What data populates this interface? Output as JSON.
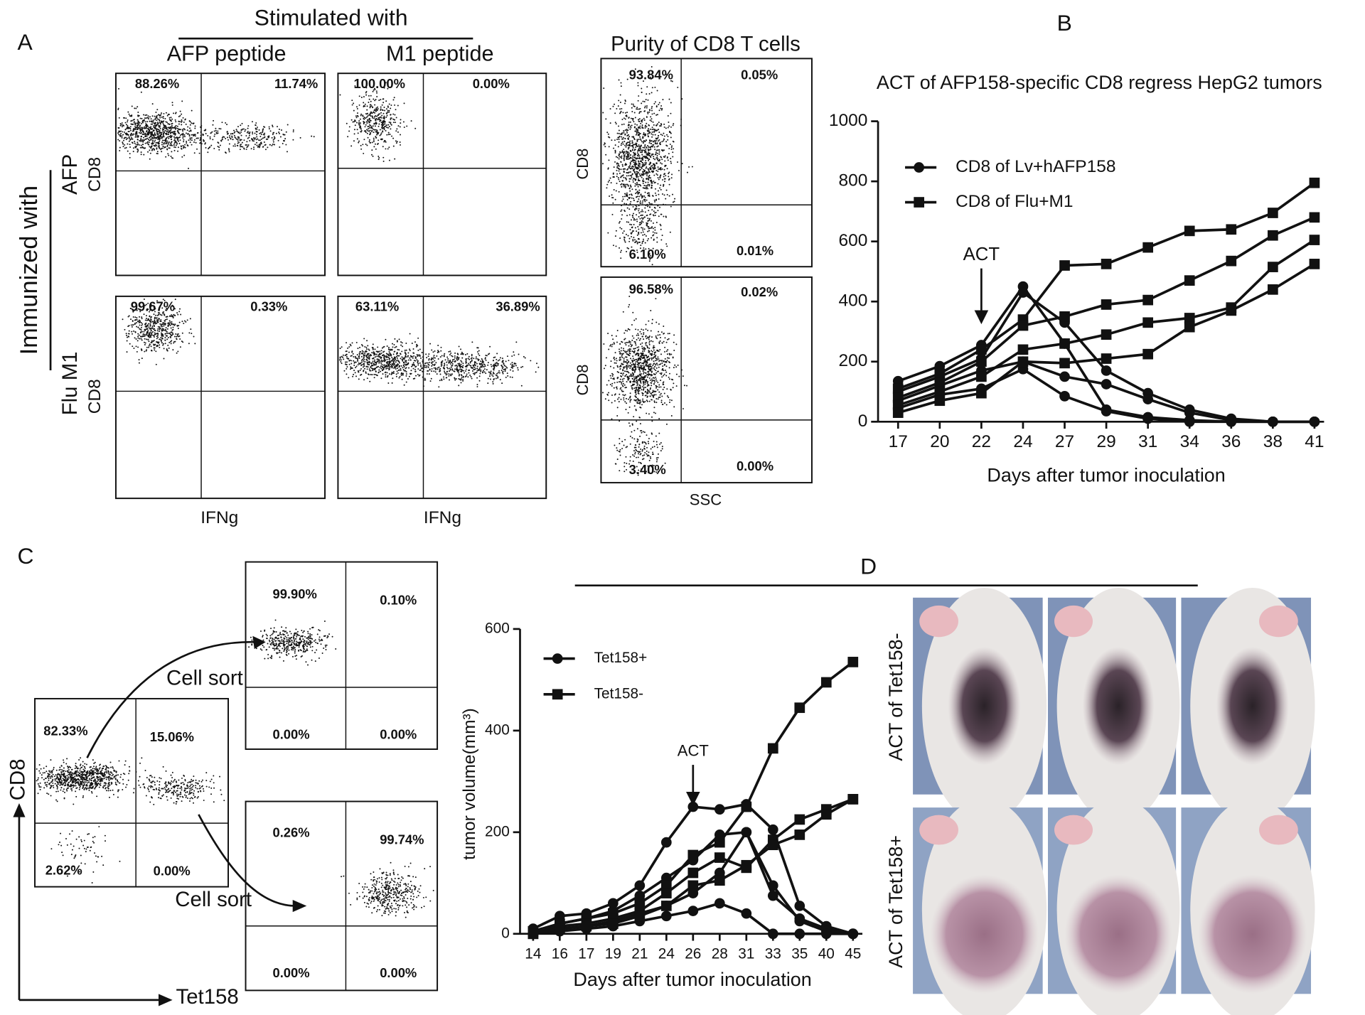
{
  "panel_labels": [
    "A",
    "B",
    "C",
    "D"
  ],
  "flow_a": {
    "header": "Stimulated with",
    "columns": [
      "AFP peptide",
      "M1 peptide"
    ],
    "row_title": "Immunized with",
    "rows": [
      "AFP",
      "Flu M1"
    ],
    "y_label": "CD8",
    "x_label": "IFNg",
    "plots": [
      [
        "88.26%",
        "11.74%"
      ],
      [
        "100.00%",
        "0.00%"
      ],
      [
        "99.67%",
        "0.33%"
      ],
      [
        "63.11%",
        "36.89%"
      ]
    ]
  },
  "purity": {
    "title": "Purity of CD8 T cells",
    "y_label": "CD8",
    "x_label": "SSC",
    "plots": [
      [
        "93.84%",
        "0.05%",
        "6.10%",
        "0.01%"
      ],
      [
        "96.58%",
        "0.02%",
        "3.40%",
        "0.00%"
      ]
    ]
  },
  "flow_c": {
    "y_label": "CD8",
    "x_label": "Tet158",
    "sort_label": "Cell sort",
    "plots": [
      [
        "82.33%",
        "15.06%",
        "2.62%",
        "0.00%"
      ],
      [
        "99.90%",
        "0.10%",
        "0.00%",
        "0.00%"
      ],
      [
        "0.26%",
        "99.74%",
        "0.00%",
        "0.00%"
      ]
    ]
  },
  "photos": {
    "rows": [
      "ACT of Tet158-",
      "ACT of Tet158+"
    ]
  },
  "chart_data": [
    {
      "type": "line",
      "title": "ACT of AFP158-specific CD8 regress HepG2 tumors",
      "x_label": "Days after tumor inoculation",
      "categories": [
        "17",
        "20",
        "22",
        "24",
        "27",
        "29",
        "31",
        "34",
        "36",
        "38",
        "41"
      ],
      "ylim": [
        0,
        1000
      ],
      "yticks": [
        0,
        200,
        400,
        600,
        800,
        1000
      ],
      "color": "#111111",
      "annotation": {
        "text": "ACT",
        "category": "22"
      },
      "series": [
        {
          "name": "CD8 of Lv+hAFP158",
          "marker": "circle",
          "values": [
            [
              135,
              185,
              255,
              450,
              260,
              40,
              15,
              5,
              0,
              0,
              0
            ],
            [
              100,
              150,
              210,
              430,
              330,
              170,
              95,
              40,
              10,
              0,
              0
            ],
            [
              70,
              120,
              170,
              200,
              150,
              125,
              75,
              30,
              5,
              0,
              0
            ],
            [
              45,
              90,
              110,
              175,
              85,
              35,
              10,
              0,
              0,
              0,
              0
            ]
          ]
        },
        {
          "name": "CD8 of Flu+M1",
          "marker": "square",
          "values": [
            [
              110,
              160,
              240,
              340,
              520,
              525,
              580,
              635,
              640,
              695,
              795
            ],
            [
              80,
              130,
              200,
              320,
              350,
              390,
              405,
              470,
              535,
              620,
              680
            ],
            [
              55,
              100,
              150,
              240,
              260,
              290,
              330,
              345,
              380,
              515,
              605
            ],
            [
              30,
              70,
              95,
              200,
              195,
              210,
              225,
              315,
              370,
              440,
              525
            ]
          ]
        }
      ]
    },
    {
      "type": "line",
      "x_label": "Days after tumor inoculation",
      "y_label": "tumor volume(mm³)",
      "categories": [
        "14",
        "16",
        "17",
        "19",
        "21",
        "24",
        "26",
        "28",
        "31",
        "33",
        "35",
        "40",
        "45"
      ],
      "ylim": [
        0,
        600
      ],
      "yticks": [
        0,
        200,
        400,
        600
      ],
      "color": "#111111",
      "annotation": {
        "text": "ACT",
        "category": "26"
      },
      "series": [
        {
          "name": "Tet158+",
          "marker": "circle",
          "values": [
            [
              10,
              35,
              40,
              60,
              95,
              180,
              250,
              245,
              255,
              205,
              55,
              15,
              0
            ],
            [
              5,
              20,
              30,
              45,
              75,
              110,
              145,
              195,
              200,
              75,
              30,
              10,
              0
            ],
            [
              0,
              10,
              15,
              25,
              40,
              55,
              80,
              120,
              200,
              95,
              25,
              5,
              0
            ],
            [
              0,
              5,
              10,
              15,
              25,
              35,
              45,
              60,
              40,
              0,
              0,
              0,
              0
            ]
          ]
        },
        {
          "name": "Tet158-",
          "marker": "square",
          "values": [
            [
              5,
              20,
              30,
              40,
              60,
              95,
              155,
              180,
              250,
              365,
              445,
              495,
              535
            ],
            [
              0,
              15,
              20,
              30,
              45,
              80,
              120,
              150,
              130,
              185,
              225,
              245,
              265
            ],
            [
              0,
              10,
              15,
              20,
              35,
              55,
              95,
              105,
              135,
              175,
              195,
              235,
              265
            ]
          ]
        }
      ]
    }
  ]
}
